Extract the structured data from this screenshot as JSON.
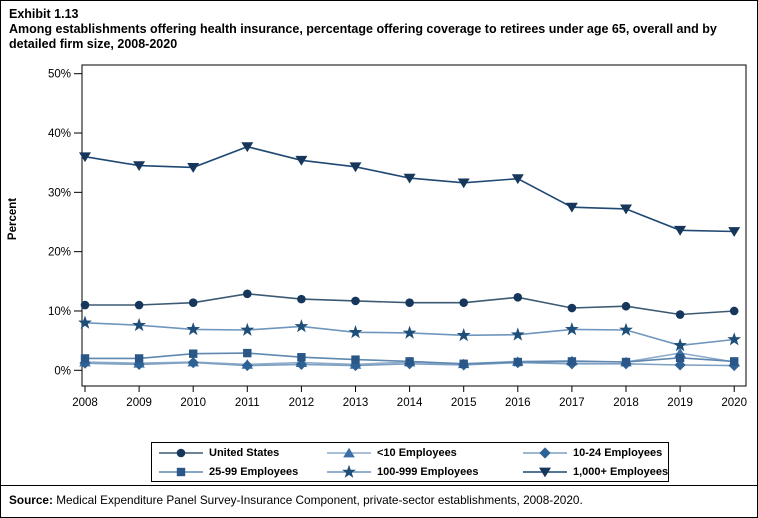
{
  "page": {
    "exhibit_label": "Exhibit 1.13",
    "title": "Among establishments offering health insurance, percentage offering coverage to retirees under age 65, overall and by detailed firm size, 2008-2020",
    "source_label": "Source:",
    "source_text": " Medical Expenditure Panel Survey-Insurance Component, private-sector establishments, 2008-2020."
  },
  "chart_data": {
    "type": "line",
    "title": "Among establishments offering health insurance, percentage offering coverage to retirees under age 65, overall and by detailed firm size, 2008-2020",
    "xlabel": "",
    "ylabel": "Percent",
    "ylim": [
      0,
      50
    ],
    "yticks": [
      {
        "value": 0,
        "label": "0%"
      },
      {
        "value": 10,
        "label": "10%"
      },
      {
        "value": 20,
        "label": "20%"
      },
      {
        "value": 30,
        "label": "30%"
      },
      {
        "value": 40,
        "label": "40%"
      },
      {
        "value": 50,
        "label": "50%"
      }
    ],
    "x": [
      2008,
      2009,
      2010,
      2011,
      2012,
      2013,
      2014,
      2015,
      2016,
      2017,
      2018,
      2019,
      2020
    ],
    "grid": false,
    "legend_position": "bottom",
    "series": [
      {
        "name": "United States",
        "marker": "circle",
        "color": "#16365C",
        "line_color": "#3D5A73",
        "values": [
          11.0,
          11.0,
          11.4,
          12.9,
          12.0,
          11.7,
          11.4,
          11.4,
          12.3,
          10.5,
          10.8,
          9.4,
          10.0
        ]
      },
      {
        "name": "<10 Employees",
        "marker": "triangle-up",
        "color": "#3C6FA5",
        "line_color": "#8FACCB",
        "values": [
          1.4,
          1.2,
          1.4,
          1.0,
          1.3,
          1.0,
          1.4,
          1.1,
          1.5,
          1.6,
          1.4,
          2.9,
          1.4
        ]
      },
      {
        "name": "10-24 Employees",
        "marker": "diamond",
        "color": "#2E6295",
        "line_color": "#7EA0C2",
        "values": [
          1.2,
          1.0,
          1.3,
          0.8,
          1.0,
          0.8,
          1.1,
          0.9,
          1.3,
          1.1,
          1.1,
          0.9,
          0.8
        ]
      },
      {
        "name": "25-99 Employees",
        "marker": "square",
        "color": "#2A5788",
        "line_color": "#5F88B0",
        "values": [
          2.0,
          2.0,
          2.8,
          2.9,
          2.2,
          1.8,
          1.5,
          1.1,
          1.4,
          1.5,
          1.4,
          2.1,
          1.5
        ]
      },
      {
        "name": "100-999 Employees",
        "marker": "star",
        "color": "#1F4E79",
        "line_color": "#6F96BD",
        "values": [
          8.0,
          7.6,
          6.9,
          6.8,
          7.4,
          6.4,
          6.3,
          5.9,
          6.0,
          6.9,
          6.8,
          4.2,
          5.2
        ]
      },
      {
        "name": "1,000+ Employees",
        "marker": "triangle-down",
        "color": "#16365C",
        "line_color": "#1F4973",
        "values": [
          36.0,
          34.5,
          34.2,
          37.7,
          35.4,
          34.3,
          32.4,
          31.6,
          32.3,
          27.5,
          27.2,
          23.6,
          23.4
        ]
      }
    ]
  }
}
